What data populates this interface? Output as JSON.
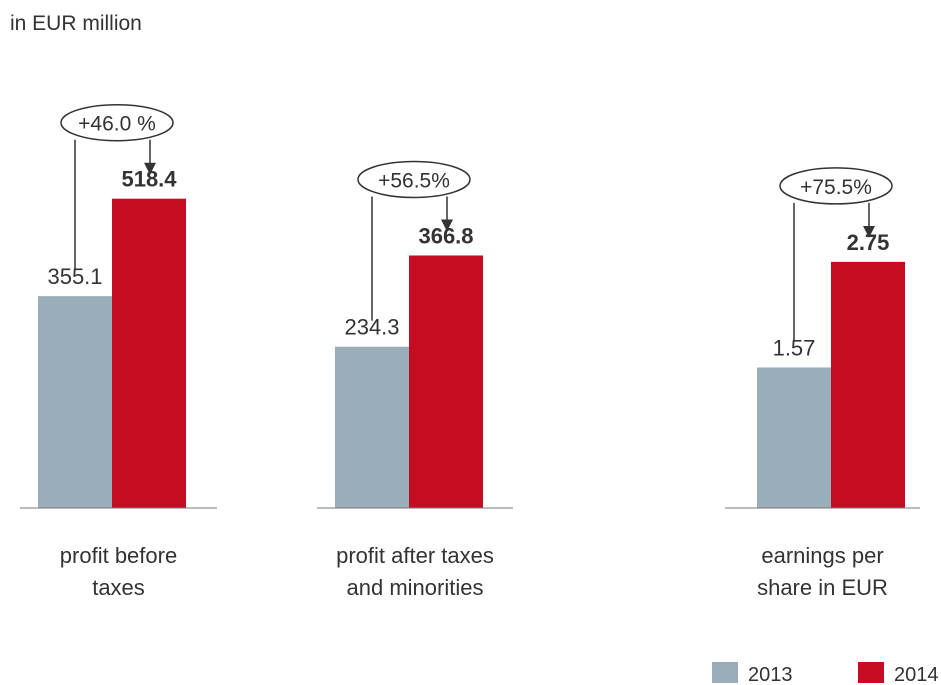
{
  "subtitle": "in EUR million",
  "legend": [
    {
      "name": "2013",
      "color": "#9aaeba"
    },
    {
      "name": "2014",
      "color": "#c60c23"
    }
  ],
  "chart_data": [
    {
      "type": "bar",
      "title": [
        "profit before",
        "taxes"
      ],
      "values": [
        355.1,
        518.4
      ],
      "annotation": "+46.0 %",
      "ylim": [
        0,
        600
      ]
    },
    {
      "type": "bar",
      "title": [
        "profit after taxes",
        "and minorities"
      ],
      "values": [
        234.3,
        366.8
      ],
      "annotation": "+56.5%",
      "ylim": [
        0,
        520
      ]
    },
    {
      "type": "bar",
      "title": [
        "earnings per",
        "share in EUR"
      ],
      "values": [
        1.57,
        2.75
      ],
      "annotation": "+75.5%",
      "ylim": [
        0,
        4
      ]
    }
  ]
}
